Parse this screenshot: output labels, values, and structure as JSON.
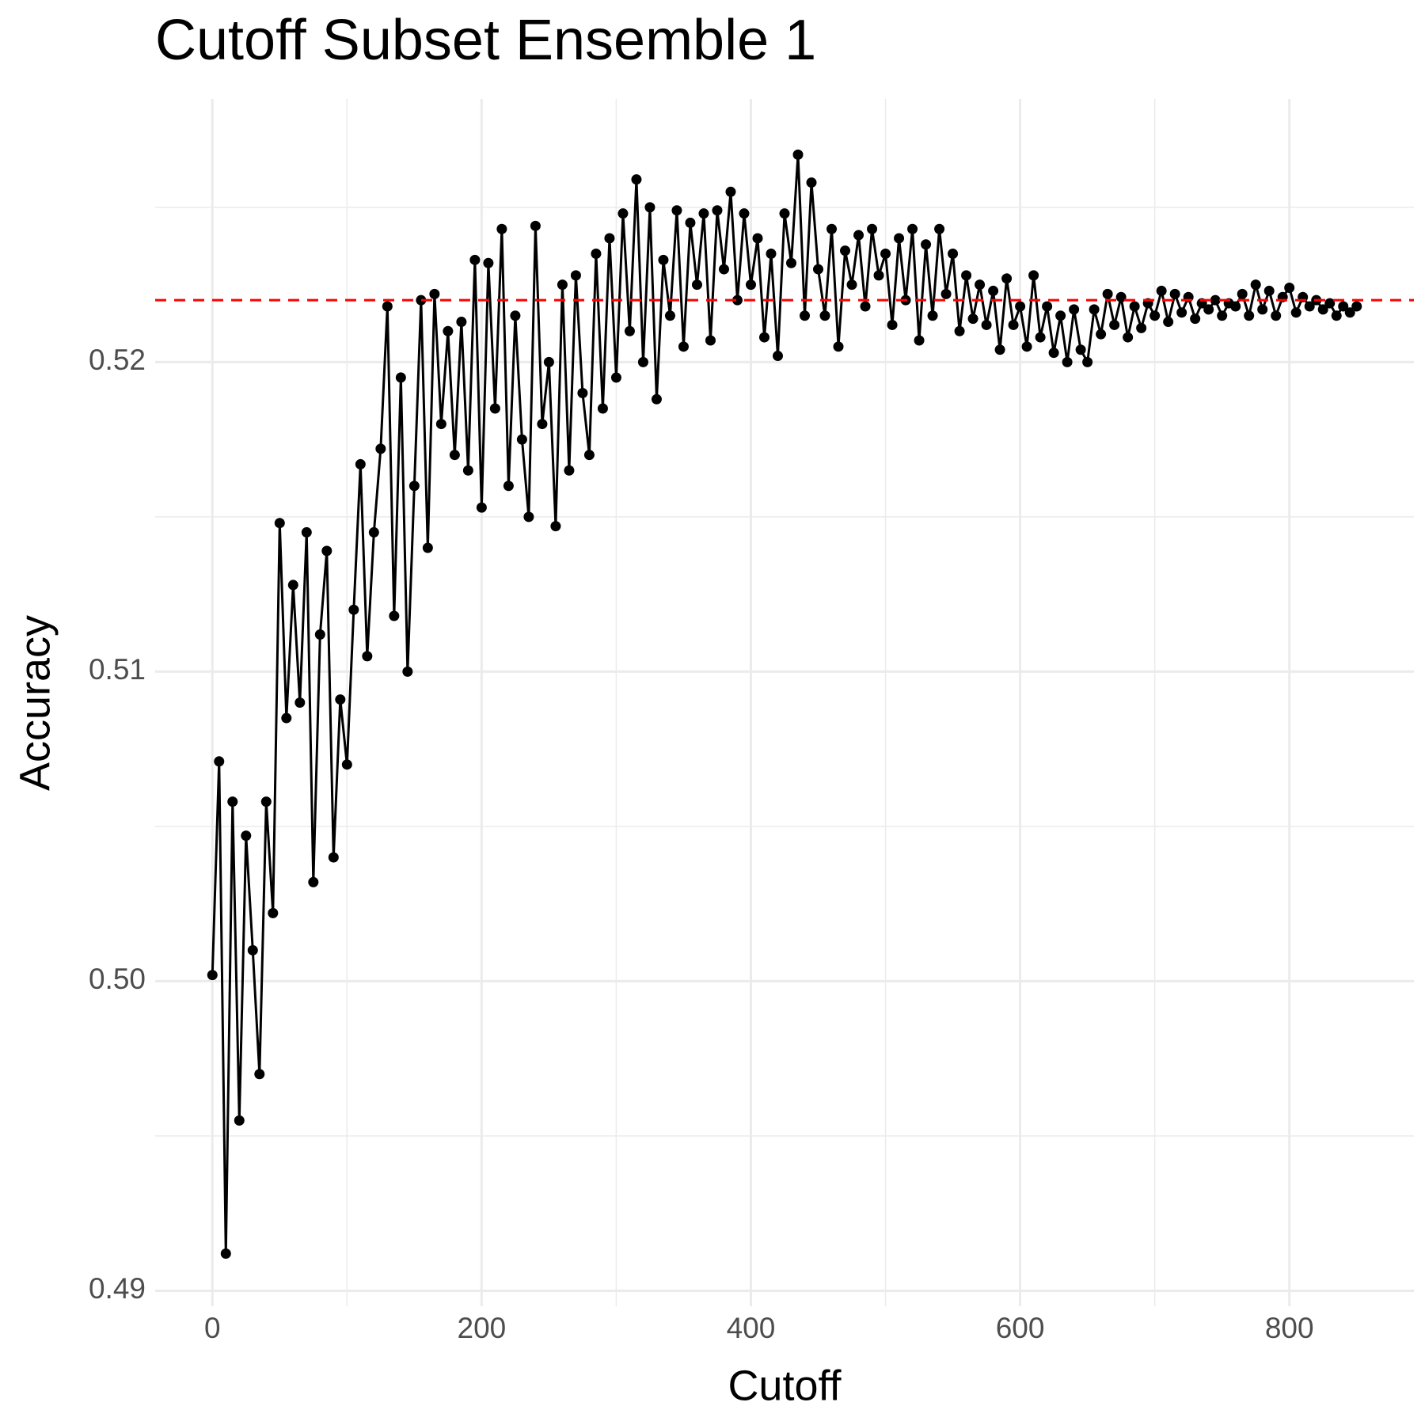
{
  "chart_data": {
    "type": "line",
    "title": "Cutoff Subset Ensemble 1",
    "x_label": "Cutoff",
    "y_label": "Accuracy",
    "x": [
      0,
      5,
      10,
      15,
      20,
      25,
      30,
      35,
      40,
      45,
      50,
      55,
      60,
      65,
      70,
      75,
      80,
      85,
      90,
      95,
      100,
      105,
      110,
      115,
      120,
      125,
      130,
      135,
      140,
      145,
      150,
      155,
      160,
      165,
      170,
      175,
      180,
      185,
      190,
      195,
      200,
      205,
      210,
      215,
      220,
      225,
      230,
      235,
      240,
      245,
      250,
      255,
      260,
      265,
      270,
      275,
      280,
      285,
      290,
      295,
      300,
      305,
      310,
      315,
      320,
      325,
      330,
      335,
      340,
      345,
      350,
      355,
      360,
      365,
      370,
      375,
      380,
      385,
      390,
      395,
      400,
      405,
      410,
      415,
      420,
      425,
      430,
      435,
      440,
      445,
      450,
      455,
      460,
      465,
      470,
      475,
      480,
      485,
      490,
      495,
      500,
      505,
      510,
      515,
      520,
      525,
      530,
      535,
      540,
      545,
      550,
      555,
      560,
      565,
      570,
      575,
      580,
      585,
      590,
      595,
      600,
      605,
      610,
      615,
      620,
      625,
      630,
      635,
      640,
      645,
      650,
      655,
      660,
      665,
      670,
      675,
      680,
      685,
      690,
      695,
      700,
      705,
      710,
      715,
      720,
      725,
      730,
      735,
      740,
      745,
      750,
      755,
      760,
      765,
      770,
      775,
      780,
      785,
      790,
      795,
      800,
      805,
      810,
      815,
      820,
      825,
      830,
      835,
      840,
      845,
      850
    ],
    "series": [
      {
        "color": "#000000",
        "values": [
          0.5002,
          0.5071,
          0.4912,
          0.5058,
          0.4955,
          0.5047,
          0.501,
          0.497,
          0.5058,
          0.5022,
          0.5148,
          0.5085,
          0.5128,
          0.509,
          0.5145,
          0.5032,
          0.5112,
          0.5139,
          0.504,
          0.5091,
          0.507,
          0.512,
          0.5167,
          0.5105,
          0.5145,
          0.5172,
          0.5218,
          0.5118,
          0.5195,
          0.51,
          0.516,
          0.522,
          0.514,
          0.5222,
          0.518,
          0.521,
          0.517,
          0.5213,
          0.5165,
          0.5233,
          0.5153,
          0.5232,
          0.5185,
          0.5243,
          0.516,
          0.5215,
          0.5175,
          0.515,
          0.5244,
          0.518,
          0.52,
          0.5147,
          0.5225,
          0.5165,
          0.5228,
          0.519,
          0.517,
          0.5235,
          0.5185,
          0.524,
          0.5195,
          0.5248,
          0.521,
          0.5259,
          0.52,
          0.525,
          0.5188,
          0.5233,
          0.5215,
          0.5249,
          0.5205,
          0.5245,
          0.5225,
          0.5248,
          0.5207,
          0.5249,
          0.523,
          0.5255,
          0.522,
          0.5248,
          0.5225,
          0.524,
          0.5208,
          0.5235,
          0.5202,
          0.5248,
          0.5232,
          0.5267,
          0.5215,
          0.5258,
          0.523,
          0.5215,
          0.5243,
          0.5205,
          0.5236,
          0.5225,
          0.5241,
          0.5218,
          0.5243,
          0.5228,
          0.5235,
          0.5212,
          0.524,
          0.522,
          0.5243,
          0.5207,
          0.5238,
          0.5215,
          0.5243,
          0.5222,
          0.5235,
          0.521,
          0.5228,
          0.5214,
          0.5225,
          0.5212,
          0.5223,
          0.5204,
          0.5227,
          0.5212,
          0.5218,
          0.5205,
          0.5228,
          0.5208,
          0.5218,
          0.5203,
          0.5215,
          0.52,
          0.5217,
          0.5204,
          0.52,
          0.5217,
          0.5209,
          0.5222,
          0.5212,
          0.5221,
          0.5208,
          0.5218,
          0.5211,
          0.5219,
          0.5215,
          0.5223,
          0.5213,
          0.5222,
          0.5216,
          0.5221,
          0.5214,
          0.5219,
          0.5217,
          0.522,
          0.5215,
          0.5219,
          0.5218,
          0.5222,
          0.5215,
          0.5225,
          0.5217,
          0.5223,
          0.5215,
          0.5221,
          0.5224,
          0.5216,
          0.5221,
          0.5218,
          0.522,
          0.5217,
          0.5219,
          0.5215,
          0.5218,
          0.5216,
          0.5218
        ]
      }
    ],
    "hline": {
      "value": 0.522,
      "color": "#ff0000"
    },
    "xlim": [
      -42.5,
      892.5
    ],
    "xticks": [
      0,
      200,
      400,
      600,
      800
    ],
    "x_minor_grid": [
      100,
      300,
      500,
      700
    ],
    "ylim": [
      0.4895,
      0.5285
    ],
    "yticks": [
      {
        "value": 0.49,
        "label": "0.49"
      },
      {
        "value": 0.5,
        "label": "0.50"
      },
      {
        "value": 0.51,
        "label": "0.51"
      },
      {
        "value": 0.52,
        "label": "0.52"
      }
    ],
    "y_minor_grid": [
      0.495,
      0.505,
      0.515,
      0.525
    ],
    "grid": true
  }
}
